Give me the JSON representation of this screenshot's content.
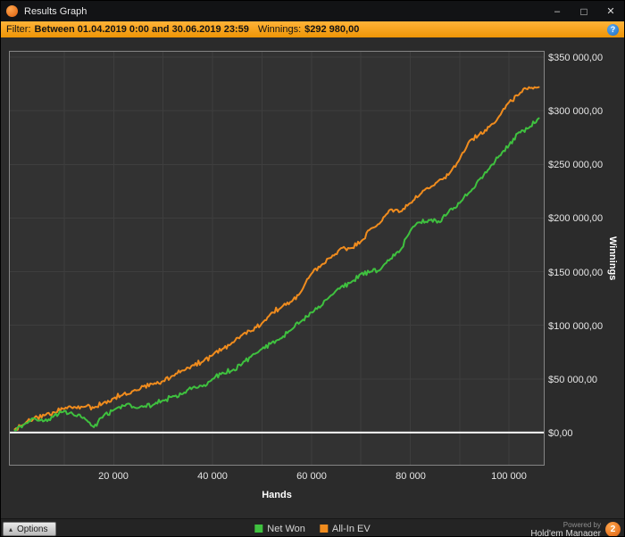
{
  "window": {
    "title": "Results Graph",
    "minimize_glyph": "–",
    "maximize_glyph": "□",
    "close_glyph": "✕"
  },
  "filter_bar": {
    "label": "Filter:",
    "range_text": "Between 01.04.2019 0:00 and 30.06.2019 23:59",
    "winnings_label": "Winnings:",
    "winnings_value": "$292 980,00",
    "help_glyph": "?"
  },
  "chart_data": {
    "type": "line",
    "title": "",
    "xlabel": "Hands",
    "ylabel": "Winnings",
    "xlim": [
      -1000,
      107000
    ],
    "ylim": [
      -30000,
      355000
    ],
    "x_grid_step": 10000,
    "x_ticks": [
      20000,
      40000,
      60000,
      80000,
      100000
    ],
    "x_tick_labels": [
      "20 000",
      "40 000",
      "60 000",
      "80 000",
      "100 000"
    ],
    "y_ticks": [
      0,
      50000,
      100000,
      150000,
      200000,
      250000,
      300000,
      350000
    ],
    "y_tick_labels": [
      "$0,00",
      "$50 000,00",
      "$100 000,00",
      "$150 000,00",
      "$200 000,00",
      "$250 000,00",
      "$300 000,00",
      "$350 000,00"
    ],
    "zero_line_value": 0,
    "zero_line_color": "#ffffff",
    "grid_color": "#3e3e3e",
    "plot_bg": "#323232",
    "legend_position": "bottom",
    "x": [
      0,
      2000,
      4000,
      6000,
      8000,
      10000,
      12000,
      14000,
      16000,
      18000,
      20000,
      22000,
      24000,
      26000,
      28000,
      30000,
      32000,
      34000,
      36000,
      38000,
      40000,
      42000,
      44000,
      46000,
      48000,
      50000,
      52000,
      54000,
      56000,
      58000,
      60000,
      62000,
      64000,
      66000,
      68000,
      70000,
      72000,
      74000,
      76000,
      78000,
      80000,
      82000,
      84000,
      86000,
      88000,
      90000,
      92000,
      94000,
      96000,
      98000,
      100000,
      102000,
      104000,
      106000
    ],
    "series": [
      {
        "name": "Net Won",
        "color": "#3fc13f",
        "values": [
          2000,
          8000,
          13000,
          11000,
          16000,
          20000,
          16000,
          14000,
          5000,
          16000,
          21000,
          25000,
          24000,
          24000,
          26000,
          30000,
          34000,
          36000,
          42000,
          43000,
          50000,
          56000,
          58000,
          64000,
          72000,
          78000,
          84000,
          88000,
          96000,
          104000,
          112000,
          118000,
          128000,
          136000,
          140000,
          148000,
          150000,
          152000,
          162000,
          170000,
          188000,
          196000,
          198000,
          196000,
          208000,
          214000,
          224000,
          236000,
          246000,
          258000,
          268000,
          280000,
          284000,
          292980
        ]
      },
      {
        "name": "All-In EV",
        "color": "#f08c1e",
        "values": [
          3000,
          8000,
          14000,
          16000,
          19000,
          22000,
          24000,
          24000,
          23000,
          28000,
          32000,
          36000,
          39000,
          43000,
          45000,
          48000,
          53000,
          58000,
          63000,
          66000,
          72000,
          78000,
          84000,
          91000,
          95000,
          102000,
          112000,
          117000,
          122000,
          132000,
          148000,
          156000,
          163000,
          172000,
          172000,
          178000,
          190000,
          196000,
          208000,
          206000,
          214000,
          222000,
          228000,
          236000,
          242000,
          255000,
          272000,
          278000,
          285000,
          295000,
          308000,
          315000,
          322000,
          322000
        ]
      }
    ]
  },
  "footer": {
    "options_label": "Options",
    "options_caret": "▴",
    "legend": [
      {
        "label": "Net Won",
        "color": "#3fc13f"
      },
      {
        "label": "All-In EV",
        "color": "#f08c1e"
      }
    ],
    "powered_by": "Powered by",
    "brand": "Hold'em Manager",
    "brand_badge": "2"
  }
}
